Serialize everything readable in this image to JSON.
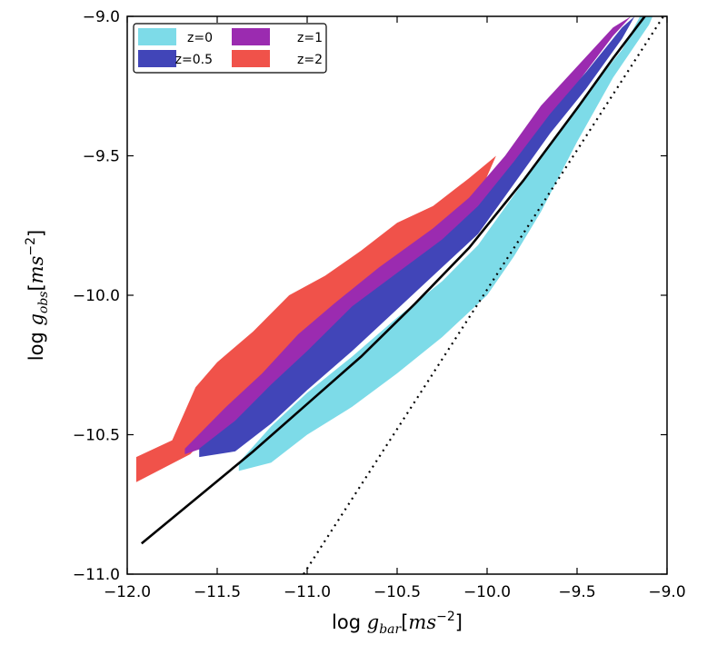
{
  "chart_data": {
    "type": "area",
    "xlabel": {
      "prefix": "log ",
      "var": "g",
      "sub": "bar",
      "unit_open": "[",
      "unit_var": "ms",
      "unit_sup": "−2",
      "unit_close": "]"
    },
    "ylabel": {
      "prefix": "log ",
      "var": "g",
      "sub": "obs",
      "unit_open": "[",
      "unit_var": "ms",
      "unit_sup": "−2",
      "unit_close": "]"
    },
    "xlim": [
      -12.0,
      -9.0
    ],
    "ylim": [
      -11.0,
      -9.0
    ],
    "x_ticks": [
      -12.0,
      -11.5,
      -11.0,
      -10.5,
      -10.0,
      -9.5,
      -9.0
    ],
    "x_tick_labels": [
      "−12.0",
      "−11.5",
      "−11.0",
      "−10.5",
      "−10.0",
      "−9.5",
      "−9.0"
    ],
    "y_ticks": [
      -11.0,
      -10.5,
      -10.0,
      -9.5,
      -9.0
    ],
    "y_tick_labels": [
      "−11.0",
      "−10.5",
      "−10.0",
      "−9.5",
      "−9.0"
    ],
    "grid": false,
    "legend_placement": "top-left",
    "series": [
      {
        "name": "z=2",
        "color": "#f0524a",
        "upper": [
          [
            -11.95,
            -10.58
          ],
          [
            -11.75,
            -10.52
          ],
          [
            -11.62,
            -10.33
          ],
          [
            -11.5,
            -10.24
          ],
          [
            -11.3,
            -10.13
          ],
          [
            -11.1,
            -10.0
          ],
          [
            -10.9,
            -9.93
          ],
          [
            -10.7,
            -9.84
          ],
          [
            -10.5,
            -9.74
          ],
          [
            -10.3,
            -9.68
          ],
          [
            -10.1,
            -9.58
          ],
          [
            -9.95,
            -9.5
          ]
        ],
        "lower": [
          [
            -11.95,
            -10.67
          ],
          [
            -11.65,
            -10.57
          ],
          [
            -11.5,
            -10.47
          ],
          [
            -11.3,
            -10.38
          ],
          [
            -11.1,
            -10.27
          ],
          [
            -10.9,
            -10.16
          ],
          [
            -10.7,
            -10.06
          ],
          [
            -10.5,
            -9.96
          ],
          [
            -10.3,
            -9.84
          ],
          [
            -10.1,
            -9.72
          ],
          [
            -9.95,
            -9.5
          ]
        ]
      },
      {
        "name": "z=1",
        "color": "#9b2bb0",
        "upper": [
          [
            -11.68,
            -10.55
          ],
          [
            -11.45,
            -10.4
          ],
          [
            -11.25,
            -10.28
          ],
          [
            -11.05,
            -10.14
          ],
          [
            -10.85,
            -10.03
          ],
          [
            -10.6,
            -9.9
          ],
          [
            -10.3,
            -9.76
          ],
          [
            -10.1,
            -9.65
          ],
          [
            -9.9,
            -9.5
          ],
          [
            -9.7,
            -9.32
          ],
          [
            -9.5,
            -9.18
          ],
          [
            -9.3,
            -9.04
          ],
          [
            -9.2,
            -9.0
          ]
        ],
        "lower": [
          [
            -11.68,
            -10.57
          ],
          [
            -11.45,
            -10.52
          ],
          [
            -11.25,
            -10.42
          ],
          [
            -11.05,
            -10.3
          ],
          [
            -10.85,
            -10.18
          ],
          [
            -10.6,
            -10.04
          ],
          [
            -10.3,
            -9.88
          ],
          [
            -10.1,
            -9.76
          ],
          [
            -9.9,
            -9.6
          ],
          [
            -9.7,
            -9.42
          ],
          [
            -9.5,
            -9.24
          ],
          [
            -9.3,
            -9.07
          ],
          [
            -9.2,
            -9.0
          ]
        ]
      },
      {
        "name": "z=0.5",
        "color": "#4145b8",
        "upper": [
          [
            -11.6,
            -10.55
          ],
          [
            -11.4,
            -10.45
          ],
          [
            -11.2,
            -10.32
          ],
          [
            -11.0,
            -10.2
          ],
          [
            -10.75,
            -10.04
          ],
          [
            -10.5,
            -9.92
          ],
          [
            -10.25,
            -9.8
          ],
          [
            -10.05,
            -9.68
          ],
          [
            -9.85,
            -9.52
          ],
          [
            -9.65,
            -9.35
          ],
          [
            -9.45,
            -9.2
          ],
          [
            -9.25,
            -9.04
          ],
          [
            -9.18,
            -9.0
          ]
        ],
        "lower": [
          [
            -11.6,
            -10.58
          ],
          [
            -11.4,
            -10.56
          ],
          [
            -11.2,
            -10.46
          ],
          [
            -11.0,
            -10.34
          ],
          [
            -10.75,
            -10.2
          ],
          [
            -10.5,
            -10.05
          ],
          [
            -10.25,
            -9.9
          ],
          [
            -10.05,
            -9.78
          ],
          [
            -9.85,
            -9.6
          ],
          [
            -9.65,
            -9.42
          ],
          [
            -9.45,
            -9.26
          ],
          [
            -9.25,
            -9.08
          ],
          [
            -9.18,
            -9.0
          ]
        ]
      },
      {
        "name": "z=0",
        "color": "#7ddbe8",
        "upper": [
          [
            -11.38,
            -10.6
          ],
          [
            -11.2,
            -10.47
          ],
          [
            -11.0,
            -10.35
          ],
          [
            -10.75,
            -10.22
          ],
          [
            -10.5,
            -10.08
          ],
          [
            -10.25,
            -9.95
          ],
          [
            -10.05,
            -9.82
          ],
          [
            -9.85,
            -9.64
          ],
          [
            -9.65,
            -9.46
          ],
          [
            -9.45,
            -9.28
          ],
          [
            -9.25,
            -9.12
          ],
          [
            -9.15,
            -9.0
          ]
        ],
        "lower": [
          [
            -11.38,
            -10.63
          ],
          [
            -11.2,
            -10.6
          ],
          [
            -11.0,
            -10.5
          ],
          [
            -10.75,
            -10.4
          ],
          [
            -10.5,
            -10.28
          ],
          [
            -10.25,
            -10.15
          ],
          [
            -10.0,
            -10.0
          ],
          [
            -9.85,
            -9.86
          ],
          [
            -9.7,
            -9.7
          ],
          [
            -9.5,
            -9.45
          ],
          [
            -9.3,
            -9.22
          ],
          [
            -9.1,
            -9.03
          ],
          [
            -9.08,
            -9.0
          ]
        ]
      }
    ],
    "solid_line": [
      [
        -11.92,
        -10.89
      ],
      [
        -11.6,
        -10.72
      ],
      [
        -11.3,
        -10.56
      ],
      [
        -11.0,
        -10.39
      ],
      [
        -10.7,
        -10.22
      ],
      [
        -10.4,
        -10.03
      ],
      [
        -10.1,
        -9.83
      ],
      [
        -9.8,
        -9.59
      ],
      [
        -9.5,
        -9.33
      ],
      [
        -9.3,
        -9.15
      ],
      [
        -9.1,
        -8.98
      ]
    ],
    "dotted_line": [
      [
        -11.02,
        -11.0
      ],
      [
        -9.02,
        -9.0
      ]
    ],
    "legend_order": [
      "z=0",
      "z=1",
      "z=0.5",
      "z=2"
    ]
  }
}
